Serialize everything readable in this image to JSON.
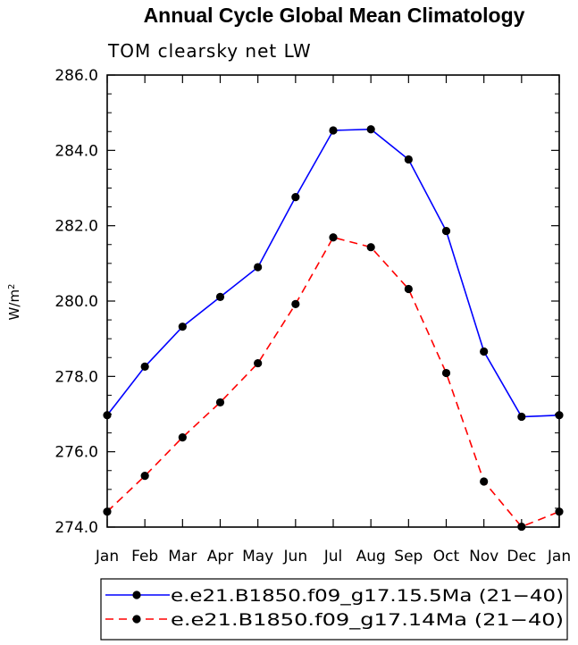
{
  "chart_data": {
    "type": "line",
    "title": "Annual Cycle Global Mean Climatology",
    "subtitle": "TOM clearsky net LW",
    "ylabel": "W/m",
    "ylabel_sup": "2",
    "categories": [
      "Jan",
      "Feb",
      "Mar",
      "Apr",
      "May",
      "Jun",
      "Jul",
      "Aug",
      "Sep",
      "Oct",
      "Nov",
      "Dec",
      "Jan"
    ],
    "ylim": [
      274.0,
      286.0
    ],
    "yticks": [
      "274.0",
      "276.0",
      "278.0",
      "280.0",
      "282.0",
      "284.0",
      "286.0"
    ],
    "series": [
      {
        "name": "e.e21.B1850.f09_g17.15.5Ma (21−40)",
        "color": "#0000ff",
        "dash": "solid",
        "values": [
          276.97,
          278.26,
          279.32,
          280.11,
          280.9,
          282.76,
          284.53,
          284.56,
          283.76,
          281.86,
          278.66,
          276.93,
          276.97
        ]
      },
      {
        "name": "e.e21.B1850.f09_g17.14Ma (21−40)",
        "color": "#ff0000",
        "dash": "dashed",
        "values": [
          274.41,
          275.36,
          276.38,
          277.31,
          278.35,
          279.92,
          281.69,
          281.43,
          280.32,
          278.09,
          275.21,
          274.01,
          274.41
        ]
      }
    ],
    "legend_position": "bottom"
  }
}
